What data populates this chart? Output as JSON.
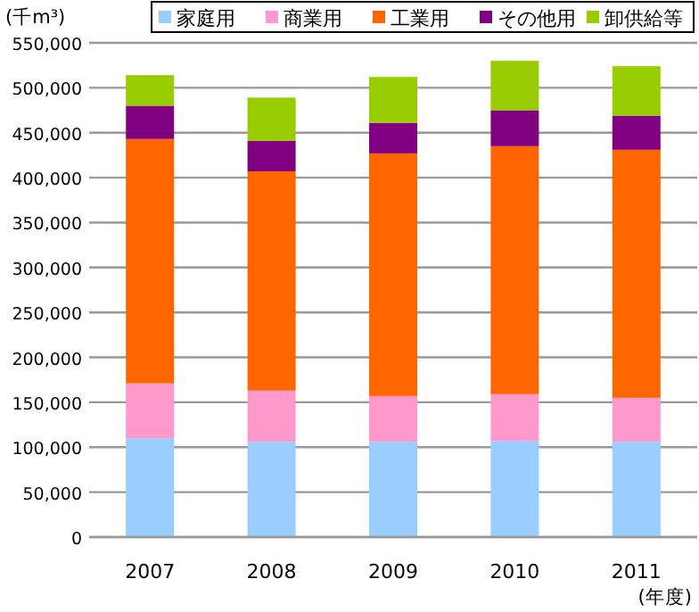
{
  "chart_data": {
    "type": "bar",
    "stacked": true,
    "ylabel": "(千m³)",
    "xlabel": "(年度)",
    "categories": [
      "2007",
      "2008",
      "2009",
      "2010",
      "2011"
    ],
    "series": [
      {
        "name": "家庭用",
        "color": "#99ccff",
        "values": [
          110000,
          106000,
          106000,
          107000,
          106000
        ]
      },
      {
        "name": "商業用",
        "color": "#ff99cc",
        "values": [
          61000,
          57000,
          51000,
          52000,
          49000
        ]
      },
      {
        "name": "工業用",
        "color": "#ff6600",
        "values": [
          272000,
          244000,
          270000,
          276000,
          276000
        ]
      },
      {
        "name": "その他用",
        "color": "#800080",
        "values": [
          37000,
          34000,
          34000,
          40000,
          38000
        ]
      },
      {
        "name": "卸供給等",
        "color": "#99cc00",
        "values": [
          34000,
          48000,
          51000,
          55000,
          55000
        ]
      }
    ],
    "ylim": [
      0,
      550000
    ],
    "yticks": [
      0,
      {
        "value": 50000,
        "label": "50,000"
      },
      {
        "value": 100000,
        "label": "100,000"
      },
      {
        "value": 150000,
        "label": "150,000"
      },
      {
        "value": 200000,
        "label": "200,000"
      },
      {
        "value": 250000,
        "label": "250,000"
      },
      {
        "value": 300000,
        "label": "300,000"
      },
      {
        "value": 350000,
        "label": "350,000"
      },
      {
        "value": 400000,
        "label": "400,000"
      },
      {
        "value": 450000,
        "label": "450,000"
      },
      {
        "value": 500000,
        "label": "500,000"
      },
      {
        "value": 550000,
        "label": "550,000"
      }
    ],
    "grid": "y",
    "legend": "top right"
  }
}
